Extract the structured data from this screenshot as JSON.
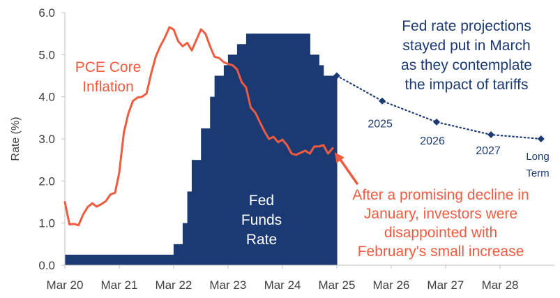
{
  "chart_data": {
    "type": "area",
    "ylabel": "Rate (%)",
    "ylim": [
      0,
      6
    ],
    "y_ticks": [
      "0.0",
      "1.0",
      "2.0",
      "3.0",
      "4.0",
      "5.0",
      "6.0"
    ],
    "x_ticks": [
      "Mar 20",
      "Mar 21",
      "Mar 22",
      "Mar 23",
      "Mar 24",
      "Mar 25",
      "Mar 26",
      "Mar 27",
      "Mar 28"
    ],
    "grid": false,
    "colors": {
      "fed_funds": "#1b3a73",
      "pce": "#ef5b3f",
      "projection": "#1b3a73"
    },
    "series": [
      {
        "name": "Fed Funds Rate",
        "kind": "step-area",
        "points": [
          [
            "2020-03-01",
            0.25
          ],
          [
            "2022-03-01",
            0.5
          ],
          [
            "2022-05-01",
            1.0
          ],
          [
            "2022-06-01",
            1.75
          ],
          [
            "2022-07-01",
            2.5
          ],
          [
            "2022-09-01",
            3.25
          ],
          [
            "2022-11-01",
            4.0
          ],
          [
            "2022-12-01",
            4.5
          ],
          [
            "2023-02-01",
            4.75
          ],
          [
            "2023-03-01",
            5.0
          ],
          [
            "2023-05-01",
            5.25
          ],
          [
            "2023-07-01",
            5.5
          ],
          [
            "2024-09-01",
            5.0
          ],
          [
            "2024-11-01",
            4.75
          ],
          [
            "2024-12-01",
            4.5
          ],
          [
            "2025-03-01",
            4.5
          ]
        ]
      },
      {
        "name": "PCE Core Inflation",
        "kind": "line",
        "points": [
          [
            "2020-03-01",
            1.5
          ],
          [
            "2020-04-01",
            0.97
          ],
          [
            "2020-05-01",
            0.98
          ],
          [
            "2020-06-01",
            0.95
          ],
          [
            "2020-07-01",
            1.2
          ],
          [
            "2020-08-01",
            1.38
          ],
          [
            "2020-09-01",
            1.47
          ],
          [
            "2020-10-01",
            1.39
          ],
          [
            "2020-11-01",
            1.45
          ],
          [
            "2020-12-01",
            1.52
          ],
          [
            "2021-01-01",
            1.68
          ],
          [
            "2021-02-01",
            1.72
          ],
          [
            "2021-03-01",
            2.2
          ],
          [
            "2021-04-01",
            3.15
          ],
          [
            "2021-05-01",
            3.6
          ],
          [
            "2021-06-01",
            3.9
          ],
          [
            "2021-07-01",
            3.98
          ],
          [
            "2021-08-01",
            4.0
          ],
          [
            "2021-09-01",
            4.08
          ],
          [
            "2021-10-01",
            4.55
          ],
          [
            "2021-11-01",
            4.95
          ],
          [
            "2021-12-01",
            5.2
          ],
          [
            "2022-01-01",
            5.4
          ],
          [
            "2022-02-01",
            5.65
          ],
          [
            "2022-03-01",
            5.6
          ],
          [
            "2022-04-01",
            5.32
          ],
          [
            "2022-05-01",
            5.2
          ],
          [
            "2022-06-01",
            5.28
          ],
          [
            "2022-07-01",
            5.1
          ],
          [
            "2022-08-01",
            5.35
          ],
          [
            "2022-09-01",
            5.6
          ],
          [
            "2022-10-01",
            5.5
          ],
          [
            "2022-11-01",
            5.2
          ],
          [
            "2022-12-01",
            4.95
          ],
          [
            "2023-01-01",
            4.92
          ],
          [
            "2023-02-01",
            4.82
          ],
          [
            "2023-03-01",
            4.78
          ],
          [
            "2023-04-01",
            4.75
          ],
          [
            "2023-05-01",
            4.65
          ],
          [
            "2023-06-01",
            4.35
          ],
          [
            "2023-07-01",
            4.22
          ],
          [
            "2023-08-01",
            3.75
          ],
          [
            "2023-09-01",
            3.62
          ],
          [
            "2023-10-01",
            3.4
          ],
          [
            "2023-11-01",
            3.18
          ],
          [
            "2023-12-01",
            3.0
          ],
          [
            "2024-01-01",
            3.05
          ],
          [
            "2024-02-01",
            2.92
          ],
          [
            "2024-03-01",
            2.98
          ],
          [
            "2024-04-01",
            2.85
          ],
          [
            "2024-05-01",
            2.65
          ],
          [
            "2024-06-01",
            2.62
          ],
          [
            "2024-07-01",
            2.67
          ],
          [
            "2024-08-01",
            2.72
          ],
          [
            "2024-09-01",
            2.65
          ],
          [
            "2024-10-01",
            2.82
          ],
          [
            "2024-11-01",
            2.82
          ],
          [
            "2024-12-01",
            2.85
          ],
          [
            "2025-01-01",
            2.65
          ],
          [
            "2025-02-01",
            2.78
          ]
        ]
      },
      {
        "name": "Fed rate projections",
        "kind": "dotted-markers",
        "points": [
          [
            "2025-03-01",
            4.5,
            ""
          ],
          [
            "2025-12-31",
            3.9,
            "2025"
          ],
          [
            "2026-12-31",
            3.4,
            "2026"
          ],
          [
            "2027-12-31",
            3.1,
            "2027"
          ],
          [
            "2028-12-01",
            3.0,
            "Long Term"
          ]
        ]
      }
    ],
    "annotations": {
      "fed_funds_label": [
        "Fed",
        "Funds",
        "Rate"
      ],
      "pce_label": [
        "PCE Core",
        "Inflation"
      ],
      "projections_note": [
        "Fed rate projections",
        "stayed put in March",
        "as they contemplate",
        "the impact of tariffs"
      ],
      "pce_note": [
        "After a promising decline in",
        "January, investors were",
        "disappointed with",
        "February's small increase"
      ]
    }
  }
}
